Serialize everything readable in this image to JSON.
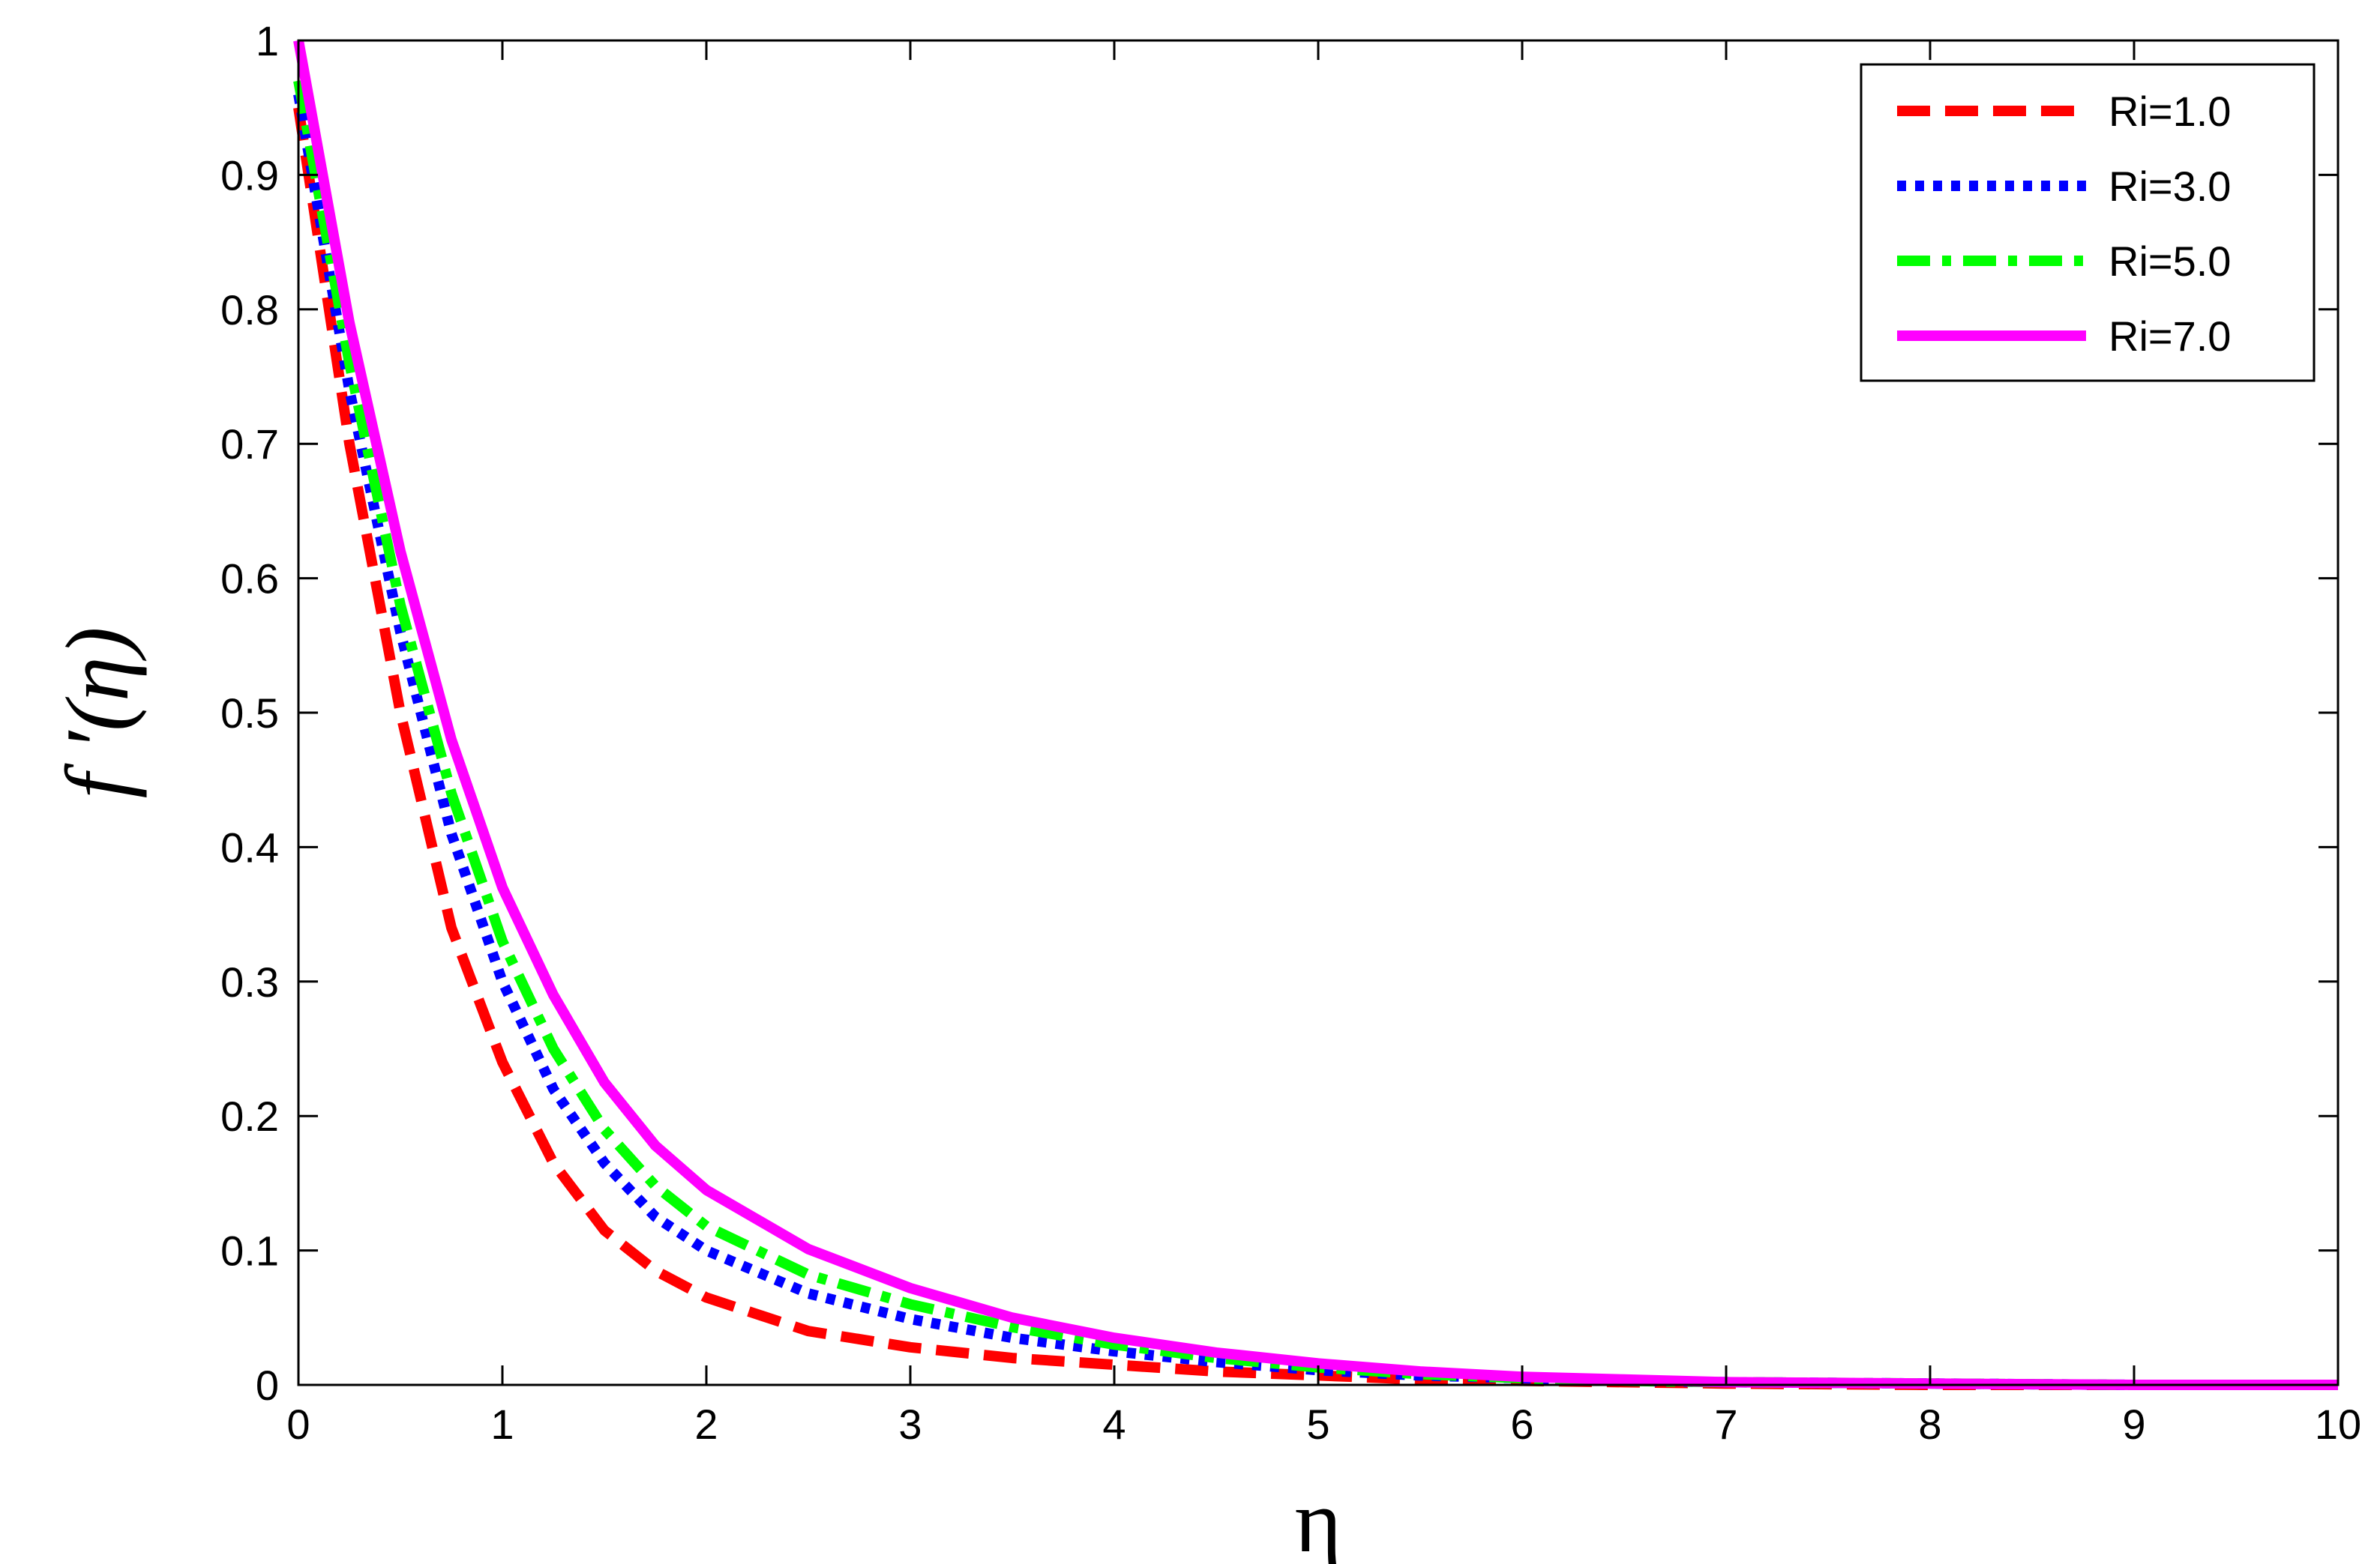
{
  "chart_data": {
    "type": "line",
    "title": "",
    "xlabel": "η",
    "ylabel": "f ′(η)",
    "xlim": [
      0,
      10
    ],
    "ylim": [
      0,
      1
    ],
    "xticks": [
      "0",
      "1",
      "2",
      "3",
      "4",
      "5",
      "6",
      "7",
      "8",
      "9",
      "10"
    ],
    "yticks": [
      "0",
      "0.1",
      "0.2",
      "0.3",
      "0.4",
      "0.5",
      "0.6",
      "0.7",
      "0.8",
      "0.9",
      "1"
    ],
    "grid": false,
    "legend_position": "top-right",
    "x": [
      0,
      0.25,
      0.5,
      0.75,
      1.0,
      1.25,
      1.5,
      1.75,
      2.0,
      2.5,
      3.0,
      3.5,
      4.0,
      4.5,
      5.0,
      5.5,
      6.0,
      6.5,
      7.0,
      8.0,
      9.0,
      10.0
    ],
    "series": [
      {
        "name": "Ri=1.0",
        "color": "#ff0000",
        "style": "dashed",
        "values": [
          0.95,
          0.7,
          0.5,
          0.34,
          0.24,
          0.165,
          0.115,
          0.085,
          0.065,
          0.04,
          0.028,
          0.02,
          0.015,
          0.01,
          0.007,
          0.004,
          0.003,
          0.002,
          0.001,
          0.0,
          0.0,
          0.0
        ]
      },
      {
        "name": "Ri=3.0",
        "color": "#0000ff",
        "style": "dotted",
        "values": [
          0.96,
          0.74,
          0.56,
          0.41,
          0.3,
          0.22,
          0.165,
          0.125,
          0.1,
          0.068,
          0.049,
          0.035,
          0.025,
          0.017,
          0.011,
          0.007,
          0.005,
          0.003,
          0.002,
          0.001,
          0.0,
          0.0
        ]
      },
      {
        "name": "Ri=5.0",
        "color": "#00ff00",
        "style": "dashdot",
        "values": [
          0.97,
          0.76,
          0.58,
          0.44,
          0.33,
          0.25,
          0.19,
          0.148,
          0.118,
          0.082,
          0.06,
          0.043,
          0.03,
          0.02,
          0.013,
          0.008,
          0.005,
          0.003,
          0.002,
          0.001,
          0.0,
          0.0
        ]
      },
      {
        "name": "Ri=7.0",
        "color": "#ff00ff",
        "style": "solid",
        "values": [
          1.0,
          0.79,
          0.62,
          0.48,
          0.37,
          0.29,
          0.225,
          0.178,
          0.145,
          0.101,
          0.072,
          0.05,
          0.035,
          0.024,
          0.016,
          0.01,
          0.006,
          0.004,
          0.002,
          0.001,
          0.0,
          0.0
        ]
      }
    ]
  }
}
